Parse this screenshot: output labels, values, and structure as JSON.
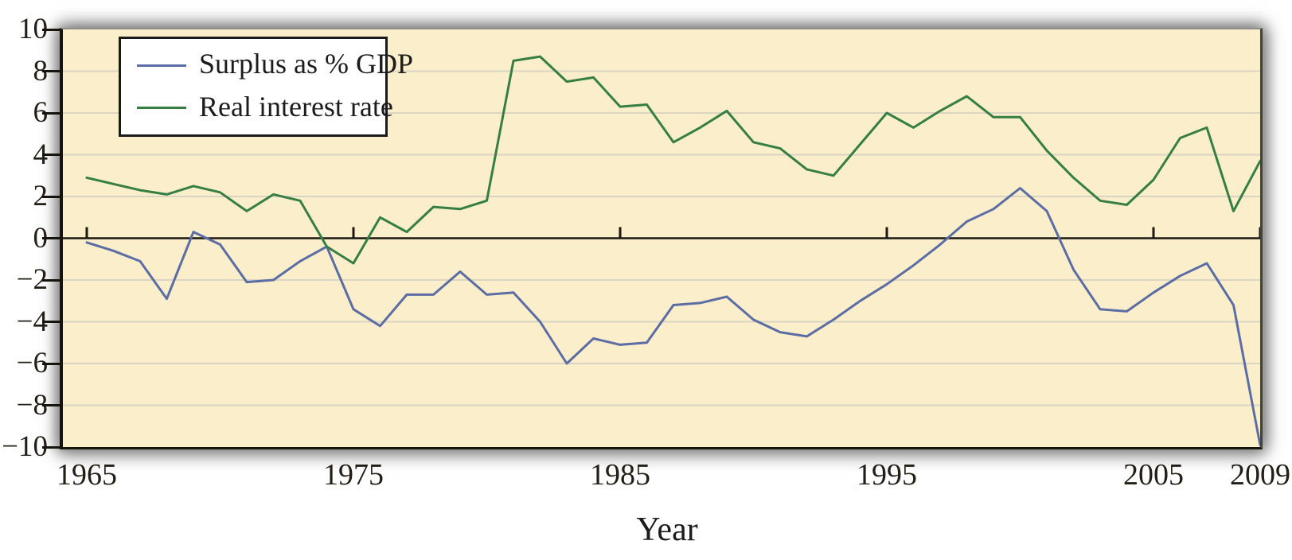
{
  "figure": {
    "x_axis_title": "Year"
  },
  "chart_data": {
    "type": "line",
    "title": "",
    "xlabel": "Year",
    "ylabel": "",
    "xlim": [
      1965,
      2009
    ],
    "ylim": [
      -10,
      10
    ],
    "grid": "horizontal-light",
    "legend_position": "top-left",
    "x": [
      1965,
      1966,
      1967,
      1968,
      1969,
      1970,
      1971,
      1972,
      1973,
      1974,
      1975,
      1976,
      1977,
      1978,
      1979,
      1980,
      1981,
      1982,
      1983,
      1984,
      1985,
      1986,
      1987,
      1988,
      1989,
      1990,
      1991,
      1992,
      1993,
      1994,
      1995,
      1996,
      1997,
      1998,
      1999,
      2000,
      2001,
      2002,
      2003,
      2004,
      2005,
      2006,
      2007,
      2008,
      2009
    ],
    "series": [
      {
        "name": "Surplus as % GDP",
        "color": "#5b6da4",
        "values": [
          -0.2,
          -0.6,
          -1.1,
          -2.9,
          0.3,
          -0.3,
          -2.1,
          -2.0,
          -1.1,
          -0.4,
          -3.4,
          -4.2,
          -2.7,
          -2.7,
          -1.6,
          -2.7,
          -2.6,
          -4.0,
          -6.0,
          -4.8,
          -5.1,
          -5.0,
          -3.2,
          -3.1,
          -2.8,
          -3.9,
          -4.5,
          -4.7,
          -3.9,
          -3.0,
          -2.2,
          -1.3,
          -0.3,
          0.8,
          1.4,
          2.4,
          1.3,
          -1.5,
          -3.4,
          -3.5,
          -2.6,
          -1.8,
          -1.2,
          -3.2,
          -9.9
        ]
      },
      {
        "name": "Real interest rate",
        "color": "#357f44",
        "values": [
          2.9,
          2.6,
          2.3,
          2.1,
          2.5,
          2.2,
          1.3,
          2.1,
          1.8,
          -0.4,
          -1.2,
          1.0,
          0.3,
          1.5,
          1.4,
          1.8,
          8.5,
          8.7,
          7.5,
          7.7,
          6.3,
          6.4,
          4.6,
          5.3,
          6.1,
          4.6,
          4.3,
          3.3,
          3.0,
          4.5,
          6.0,
          5.3,
          6.1,
          6.8,
          5.8,
          5.8,
          4.2,
          2.9,
          1.8,
          1.6,
          2.8,
          4.8,
          5.3,
          1.3,
          3.7
        ]
      }
    ],
    "x_ticks": [
      {
        "year": 1965,
        "label": "1965"
      },
      {
        "year": 1975,
        "label": "1975"
      },
      {
        "year": 1985,
        "label": "1985"
      },
      {
        "year": 1995,
        "label": "1995"
      },
      {
        "year": 2005,
        "label": "2005"
      },
      {
        "year": 2009,
        "label": "2009"
      }
    ],
    "y_ticks": [
      {
        "value": 10,
        "label": "10"
      },
      {
        "value": 8,
        "label": "8"
      },
      {
        "value": 6,
        "label": "6"
      },
      {
        "value": 4,
        "label": "4"
      },
      {
        "value": 2,
        "label": "2"
      },
      {
        "value": 0,
        "label": "0"
      },
      {
        "value": -2,
        "label": "−2"
      },
      {
        "value": -4,
        "label": "−4"
      },
      {
        "value": -6,
        "label": "−6"
      },
      {
        "value": -8,
        "label": "−8"
      },
      {
        "value": -10,
        "label": "−10"
      }
    ],
    "y_gridline_values": [
      8,
      6,
      4,
      2,
      -2,
      -4,
      -6,
      -8
    ],
    "colors": {
      "plot_background": "#fbeeca",
      "gridline": "#d9d5c2",
      "zero_axis": "#1c1812",
      "figure_background": "#ffffff"
    }
  }
}
